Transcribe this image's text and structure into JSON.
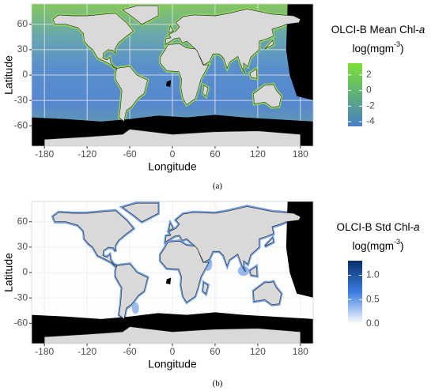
{
  "chart_data": [
    {
      "type": "map",
      "x_label": "Longitude",
      "y_label": "Latitude",
      "xlim": [
        -198,
        198
      ],
      "ylim": [
        -84,
        84
      ],
      "xticks": [
        -180,
        -120,
        -60,
        0,
        60,
        120,
        180
      ],
      "yticks": [
        -60,
        -30,
        0,
        30,
        60
      ],
      "caption": "(a)",
      "colorbar": {
        "title": [
          "OLCI-B Mean Chl-",
          "a"
        ],
        "unit": [
          "log(mgm",
          "-3",
          ")"
        ],
        "lim": [
          -4.6,
          3.5
        ],
        "ticks": [
          -4,
          -2,
          0,
          2
        ],
        "colors": [
          "#4a7ec6",
          "#5fb07a",
          "#7de234"
        ]
      }
    },
    {
      "type": "map",
      "x_label": "Longitude",
      "y_label": "Latitude",
      "xlim": [
        -198,
        198
      ],
      "ylim": [
        -84,
        84
      ],
      "xticks": [
        -180,
        -120,
        -60,
        0,
        60,
        120,
        180
      ],
      "yticks": [
        -60,
        -30,
        0,
        30,
        60
      ],
      "caption": "(b)",
      "colorbar": {
        "title": [
          "OLCI-B Std Chl-",
          "a"
        ],
        "unit": [
          "log(mgm",
          "-3",
          ")"
        ],
        "lim": [
          0,
          1.3
        ],
        "ticks": [
          {
            "value": 0,
            "label": "0.0"
          },
          {
            "value": 0.5,
            "label": "0.5"
          },
          {
            "value": 1,
            "label": "1.0"
          }
        ],
        "colors": [
          "#ffffff",
          "#3b7de0",
          "#08306b"
        ]
      }
    }
  ]
}
